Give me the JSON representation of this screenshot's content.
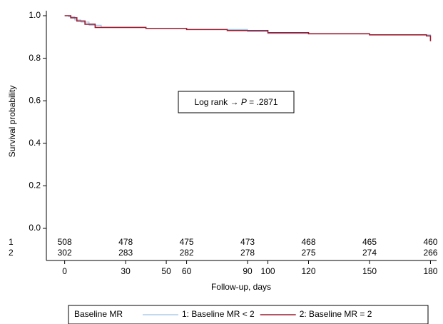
{
  "chart_data": {
    "type": "step",
    "ylabel": "Survival probability",
    "xlabel": "Follow-up, days",
    "annotation": {
      "prefix": "Log rank → ",
      "italic": "P",
      "suffix": " = .2871"
    },
    "xlim": [
      -9,
      183
    ],
    "ylim": [
      0,
      1
    ],
    "xticks": [
      0,
      30,
      50,
      60,
      90,
      100,
      120,
      150,
      180
    ],
    "yticks": [
      {
        "value": 0,
        "label": "0.0"
      },
      0.2,
      0.4,
      0.6,
      0.8,
      {
        "value": 1,
        "label": "1.0"
      }
    ],
    "legend_title": "Baseline MR",
    "series": [
      {
        "name": "1: Baseline MR < 2",
        "color": "#9dc3e6",
        "x": [
          0,
          2,
          5,
          8,
          12,
          18,
          40,
          60,
          90,
          100,
          150,
          180
        ],
        "values": [
          1.0,
          0.995,
          0.98,
          0.97,
          0.955,
          0.945,
          0.94,
          0.935,
          0.925,
          0.915,
          0.91,
          0.905
        ]
      },
      {
        "name": "2: Baseline MR = 2",
        "color": "#9b1c31",
        "x": [
          0,
          3,
          6,
          10,
          15,
          40,
          60,
          80,
          100,
          120,
          150,
          178,
          180
        ],
        "values": [
          1.0,
          0.99,
          0.975,
          0.96,
          0.945,
          0.94,
          0.935,
          0.93,
          0.92,
          0.915,
          0.91,
          0.905,
          0.88
        ]
      }
    ],
    "risk_table": {
      "x": [
        0,
        30,
        60,
        90,
        120,
        150,
        180
      ],
      "rows": [
        {
          "label": "1",
          "color": "#3b6cb7",
          "values": [
            508,
            478,
            475,
            473,
            468,
            465,
            460
          ]
        },
        {
          "label": "2",
          "color": "#c0392b",
          "values": [
            302,
            283,
            282,
            278,
            275,
            274,
            266
          ]
        }
      ]
    }
  }
}
